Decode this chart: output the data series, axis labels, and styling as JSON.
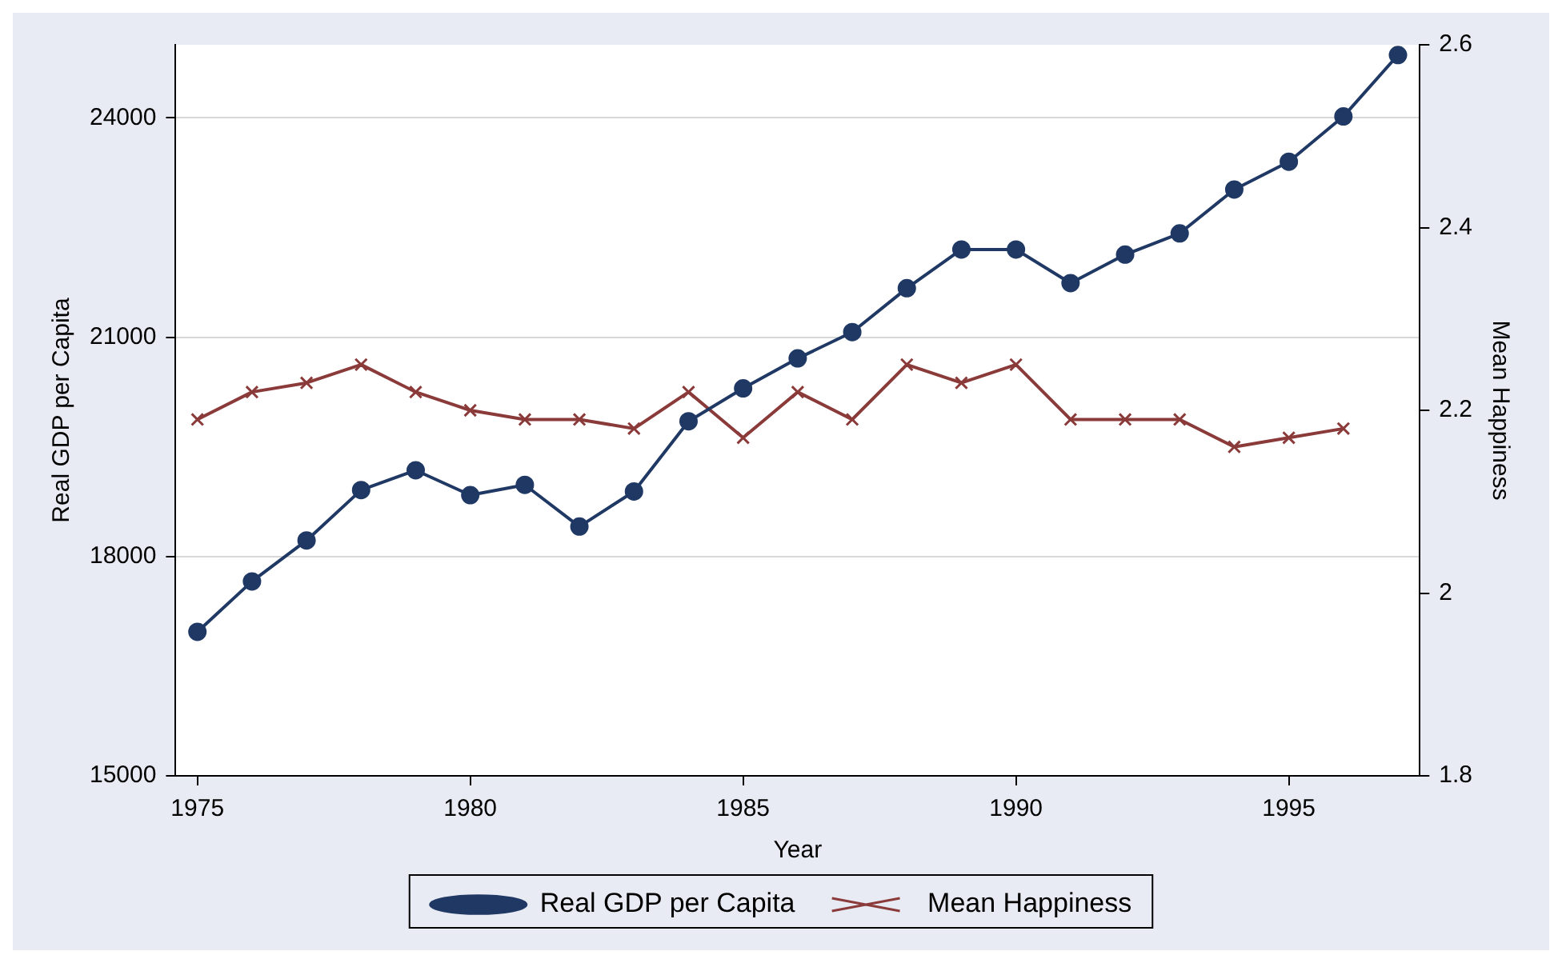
{
  "chart_data": {
    "type": "line",
    "xlabel": "Year",
    "ylabel": "Real GDP per Capita",
    "y2label": "Mean Happiness",
    "x": [
      1975,
      1976,
      1977,
      1978,
      1979,
      1980,
      1981,
      1982,
      1983,
      1984,
      1985,
      1986,
      1987,
      1988,
      1989,
      1990,
      1991,
      1992,
      1993,
      1994,
      1995,
      1996,
      1997
    ],
    "series": [
      {
        "name": "Real GDP per Capita",
        "color": "#1f3864",
        "marker": "circle",
        "values": [
          16970,
          17660,
          18220,
          18910,
          19180,
          18840,
          18980,
          18410,
          18890,
          19850,
          20300,
          20710,
          21070,
          21670,
          22200,
          22200,
          21740,
          22130,
          22420,
          23020,
          23400,
          24020,
          24860
        ]
      },
      {
        "name": "Mean Happiness",
        "color": "#8b3a3a",
        "marker": "cross",
        "axis": "y2",
        "values": [
          2.19,
          2.22,
          2.23,
          2.25,
          2.22,
          2.2,
          2.19,
          2.19,
          2.18,
          2.22,
          2.17,
          2.22,
          2.19,
          2.25,
          2.23,
          2.25,
          2.19,
          2.19,
          2.19,
          2.16,
          2.17,
          2.18,
          null
        ]
      }
    ],
    "xlim": [
      1974.6,
      1997.4
    ],
    "xticks": [
      1975,
      1980,
      1985,
      1990,
      1995
    ],
    "ylim": [
      15000,
      25000
    ],
    "yticks": [
      15000,
      18000,
      21000,
      24000
    ],
    "y2lim": [
      1.8,
      2.6
    ],
    "y2ticks": [
      1.8,
      2,
      2.2,
      2.4,
      2.6
    ],
    "grid": "y",
    "legend": "bottom",
    "line_style": "solid"
  }
}
